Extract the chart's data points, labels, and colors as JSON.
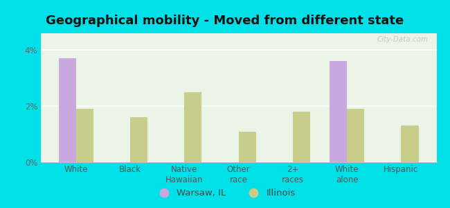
{
  "title": "Geographical mobility - Moved from different state",
  "categories": [
    "White",
    "Black",
    "Native\nHawaiian",
    "Other\nrace",
    "2+\nraces",
    "White\nalone",
    "Hispanic"
  ],
  "warsaw_values": [
    3.7,
    0.0,
    0.0,
    0.0,
    0.0,
    3.6,
    0.0
  ],
  "illinois_values": [
    1.9,
    1.6,
    2.5,
    1.1,
    1.8,
    1.9,
    1.3
  ],
  "warsaw_color": "#c9a8e0",
  "illinois_color": "#c8ce8a",
  "background_outer": "#00e0e8",
  "background_inner": "#eaf5e8",
  "ylim": [
    0,
    4.6
  ],
  "yticks": [
    0,
    2,
    4
  ],
  "ytick_labels": [
    "0%",
    "2%",
    "4%"
  ],
  "bar_width": 0.32,
  "legend_warsaw": "Warsaw, IL",
  "legend_illinois": "Illinois",
  "watermark": "City-Data.com",
  "title_fontsize": 13,
  "tick_fontsize": 8.5,
  "legend_fontsize": 9.5
}
